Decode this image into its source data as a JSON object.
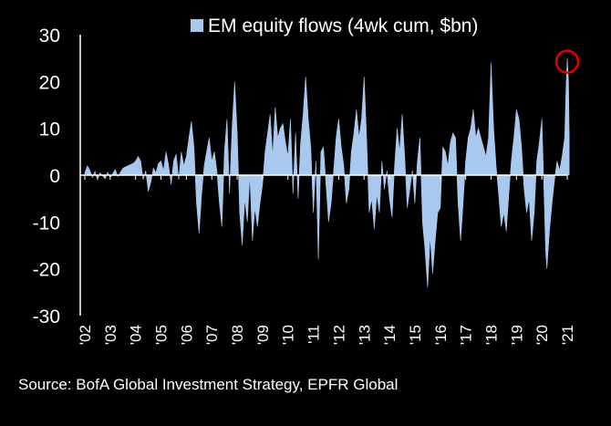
{
  "chart_data": {
    "type": "area",
    "title": "",
    "legend": {
      "label": "EM equity flows (4wk cum, $bn)",
      "placement": "top-center"
    },
    "xlabel": "",
    "ylabel": "",
    "ylim": [
      -30,
      30
    ],
    "yticks": [
      -30,
      -20,
      -10,
      0,
      10,
      20,
      30
    ],
    "xtick_labels": [
      "'02",
      "'03",
      "'04",
      "'05",
      "'06",
      "'07",
      "'08",
      "'09",
      "'10",
      "'11",
      "'12",
      "'13",
      "'14",
      "'15",
      "'16",
      "'17",
      "'18",
      "'19",
      "'20",
      "'21"
    ],
    "highlight": {
      "x": 2021.0,
      "y": 25,
      "shape": "circle",
      "color": "#e00000"
    },
    "series": [
      {
        "color": "#a9c8ee",
        "points": [
          [
            2002.0,
            0.5
          ],
          [
            2002.1,
            2.0
          ],
          [
            2002.2,
            1.0
          ],
          [
            2002.3,
            -0.5
          ],
          [
            2002.4,
            0.8
          ],
          [
            2002.5,
            -1.0
          ],
          [
            2002.6,
            0.5
          ],
          [
            2002.8,
            -0.8
          ],
          [
            2002.9,
            0.6
          ],
          [
            2003.0,
            -0.5
          ],
          [
            2003.2,
            1.2
          ],
          [
            2003.3,
            -0.3
          ],
          [
            2003.5,
            1.5
          ],
          [
            2003.7,
            2.0
          ],
          [
            2003.9,
            2.5
          ],
          [
            2004.0,
            3.0
          ],
          [
            2004.1,
            4.0
          ],
          [
            2004.2,
            3.0
          ],
          [
            2004.3,
            -1.0
          ],
          [
            2004.4,
            1.0
          ],
          [
            2004.5,
            -3.5
          ],
          [
            2004.6,
            -1.5
          ],
          [
            2004.7,
            1.5
          ],
          [
            2004.8,
            0.5
          ],
          [
            2004.9,
            2.5
          ],
          [
            2005.0,
            3.0
          ],
          [
            2005.1,
            1.0
          ],
          [
            2005.2,
            5.0
          ],
          [
            2005.3,
            2.0
          ],
          [
            2005.4,
            -2.0
          ],
          [
            2005.5,
            3.0
          ],
          [
            2005.6,
            4.5
          ],
          [
            2005.7,
            -1.0
          ],
          [
            2005.8,
            5.0
          ],
          [
            2005.9,
            2.0
          ],
          [
            2006.0,
            4.0
          ],
          [
            2006.1,
            8.0
          ],
          [
            2006.2,
            11.5
          ],
          [
            2006.3,
            6.0
          ],
          [
            2006.4,
            -6.0
          ],
          [
            2006.5,
            -12.5
          ],
          [
            2006.6,
            -4.0
          ],
          [
            2006.7,
            2.0
          ],
          [
            2006.8,
            5.0
          ],
          [
            2006.9,
            8.0
          ],
          [
            2007.0,
            3.0
          ],
          [
            2007.1,
            5.0
          ],
          [
            2007.2,
            1.0
          ],
          [
            2007.3,
            -6.0
          ],
          [
            2007.4,
            -11.0
          ],
          [
            2007.5,
            5.0
          ],
          [
            2007.6,
            12.0
          ],
          [
            2007.7,
            -4.0
          ],
          [
            2007.8,
            10.0
          ],
          [
            2007.9,
            20.0
          ],
          [
            2008.0,
            9.0
          ],
          [
            2008.1,
            -8.0
          ],
          [
            2008.2,
            -15.0
          ],
          [
            2008.3,
            -5.0
          ],
          [
            2008.4,
            -10.0
          ],
          [
            2008.5,
            0.0
          ],
          [
            2008.6,
            -14.0
          ],
          [
            2008.7,
            -7.0
          ],
          [
            2008.8,
            -11.0
          ],
          [
            2008.9,
            -6.0
          ],
          [
            2009.0,
            -2.0
          ],
          [
            2009.1,
            5.0
          ],
          [
            2009.2,
            9.0
          ],
          [
            2009.3,
            13.0
          ],
          [
            2009.4,
            4.0
          ],
          [
            2009.5,
            14.5
          ],
          [
            2009.6,
            8.0
          ],
          [
            2009.7,
            10.0
          ],
          [
            2009.8,
            11.0
          ],
          [
            2009.9,
            7.0
          ],
          [
            2010.0,
            4.0
          ],
          [
            2010.1,
            12.0
          ],
          [
            2010.2,
            -4.0
          ],
          [
            2010.3,
            9.0
          ],
          [
            2010.4,
            -5.0
          ],
          [
            2010.5,
            7.0
          ],
          [
            2010.6,
            13.0
          ],
          [
            2010.7,
            21.0
          ],
          [
            2010.8,
            12.0
          ],
          [
            2010.9,
            6.0
          ],
          [
            2011.0,
            -8.0
          ],
          [
            2011.1,
            3.0
          ],
          [
            2011.2,
            -18.0
          ],
          [
            2011.3,
            5.0
          ],
          [
            2011.4,
            6.0
          ],
          [
            2011.5,
            -2.0
          ],
          [
            2011.6,
            -10.0
          ],
          [
            2011.7,
            -6.0
          ],
          [
            2011.8,
            1.0
          ],
          [
            2011.9,
            8.0
          ],
          [
            2012.0,
            12.0
          ],
          [
            2012.1,
            6.0
          ],
          [
            2012.2,
            2.0
          ],
          [
            2012.3,
            -6.0
          ],
          [
            2012.4,
            -3.0
          ],
          [
            2012.5,
            5.0
          ],
          [
            2012.6,
            9.0
          ],
          [
            2012.7,
            14.0
          ],
          [
            2012.8,
            8.0
          ],
          [
            2012.9,
            12.0
          ],
          [
            2013.0,
            21.0
          ],
          [
            2013.1,
            8.0
          ],
          [
            2013.2,
            -8.0
          ],
          [
            2013.3,
            -5.0
          ],
          [
            2013.4,
            -11.5
          ],
          [
            2013.5,
            -4.0
          ],
          [
            2013.6,
            -8.0
          ],
          [
            2013.7,
            3.0
          ],
          [
            2013.8,
            -3.0
          ],
          [
            2013.9,
            1.0
          ],
          [
            2014.0,
            -5.0
          ],
          [
            2014.1,
            -9.0
          ],
          [
            2014.2,
            2.0
          ],
          [
            2014.3,
            10.0
          ],
          [
            2014.4,
            5.0
          ],
          [
            2014.5,
            13.0
          ],
          [
            2014.6,
            4.0
          ],
          [
            2014.7,
            -7.0
          ],
          [
            2014.8,
            -3.0
          ],
          [
            2014.9,
            1.0
          ],
          [
            2015.0,
            -6.0
          ],
          [
            2015.1,
            3.0
          ],
          [
            2015.2,
            8.0
          ],
          [
            2015.3,
            -10.0
          ],
          [
            2015.4,
            -16.0
          ],
          [
            2015.5,
            -24.0
          ],
          [
            2015.6,
            -13.0
          ],
          [
            2015.7,
            -21.0
          ],
          [
            2015.8,
            -14.0
          ],
          [
            2015.9,
            -8.0
          ],
          [
            2016.0,
            -7.0
          ],
          [
            2016.1,
            6.0
          ],
          [
            2016.2,
            5.0
          ],
          [
            2016.3,
            2.0
          ],
          [
            2016.4,
            7.0
          ],
          [
            2016.5,
            9.0
          ],
          [
            2016.6,
            8.0
          ],
          [
            2016.7,
            -6.0
          ],
          [
            2016.8,
            -14.0
          ],
          [
            2016.9,
            -6.0
          ],
          [
            2017.0,
            3.0
          ],
          [
            2017.1,
            8.0
          ],
          [
            2017.2,
            10.0
          ],
          [
            2017.3,
            14.0
          ],
          [
            2017.4,
            8.0
          ],
          [
            2017.5,
            10.0
          ],
          [
            2017.6,
            8.0
          ],
          [
            2017.7,
            6.0
          ],
          [
            2017.8,
            4.0
          ],
          [
            2017.9,
            8.0
          ],
          [
            2018.0,
            24.0
          ],
          [
            2018.1,
            10.0
          ],
          [
            2018.2,
            2.0
          ],
          [
            2018.3,
            -4.0
          ],
          [
            2018.4,
            -11.0
          ],
          [
            2018.5,
            -8.0
          ],
          [
            2018.6,
            -12.0
          ],
          [
            2018.7,
            -4.0
          ],
          [
            2018.8,
            3.0
          ],
          [
            2018.9,
            8.0
          ],
          [
            2019.0,
            14.0
          ],
          [
            2019.1,
            12.0
          ],
          [
            2019.2,
            6.0
          ],
          [
            2019.3,
            -3.0
          ],
          [
            2019.4,
            -8.0
          ],
          [
            2019.5,
            -5.0
          ],
          [
            2019.6,
            -14.0
          ],
          [
            2019.7,
            -8.0
          ],
          [
            2019.8,
            3.0
          ],
          [
            2019.9,
            7.0
          ],
          [
            2020.0,
            12.0
          ],
          [
            2020.1,
            -6.0
          ],
          [
            2020.15,
            -16.0
          ],
          [
            2020.2,
            -20.0
          ],
          [
            2020.3,
            -12.0
          ],
          [
            2020.4,
            -6.0
          ],
          [
            2020.5,
            -1.0
          ],
          [
            2020.6,
            3.0
          ],
          [
            2020.7,
            1.0
          ],
          [
            2020.8,
            4.0
          ],
          [
            2020.9,
            8.0
          ],
          [
            2020.95,
            18.0
          ],
          [
            2021.0,
            25.0
          ],
          [
            2021.05,
            20.0
          ],
          [
            2021.08,
            8.0
          ]
        ]
      }
    ]
  },
  "source": "Source: BofA Global Investment Strategy, EPFR Global",
  "colors": {
    "background": "#000000",
    "area": "#a9c8ee",
    "axis": "#ffffff",
    "highlight": "#e00000"
  }
}
